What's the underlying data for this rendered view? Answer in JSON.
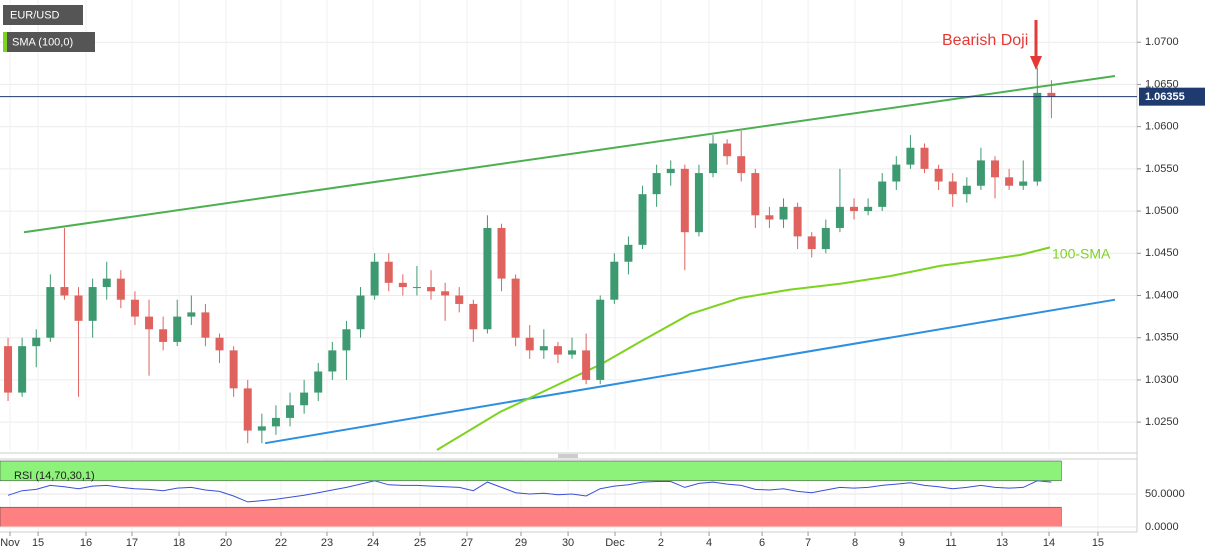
{
  "chart_data": {
    "type": "candlestick",
    "title": "EUR/USD",
    "up_color": "#3d9970",
    "down_color": "#e0625e",
    "candles": [
      [
        1.034,
        1.035,
        1.0275,
        1.0285
      ],
      [
        1.0285,
        1.035,
        1.028,
        1.034
      ],
      [
        1.034,
        1.036,
        1.0315,
        1.035
      ],
      [
        1.035,
        1.0425,
        1.0345,
        1.041
      ],
      [
        1.041,
        1.048,
        1.0395,
        1.04
      ],
      [
        1.04,
        1.041,
        1.028,
        1.037
      ],
      [
        1.037,
        1.042,
        1.035,
        1.041
      ],
      [
        1.041,
        1.044,
        1.0395,
        1.042
      ],
      [
        1.042,
        1.043,
        1.0385,
        1.0395
      ],
      [
        1.0395,
        1.0405,
        1.0365,
        1.0375
      ],
      [
        1.0375,
        1.0395,
        1.0305,
        1.036
      ],
      [
        1.036,
        1.0375,
        1.0335,
        1.0345
      ],
      [
        1.0345,
        1.0395,
        1.034,
        1.0375
      ],
      [
        1.0375,
        1.04,
        1.0365,
        1.038
      ],
      [
        1.038,
        1.039,
        1.034,
        1.035
      ],
      [
        1.035,
        1.0355,
        1.032,
        1.0335
      ],
      [
        1.0335,
        1.034,
        1.028,
        1.029
      ],
      [
        1.029,
        1.03,
        1.0225,
        1.024
      ],
      [
        1.024,
        1.026,
        1.0225,
        1.0245
      ],
      [
        1.0245,
        1.027,
        1.0235,
        1.0255
      ],
      [
        1.0255,
        1.0285,
        1.0245,
        1.027
      ],
      [
        1.027,
        1.03,
        1.026,
        1.0285
      ],
      [
        1.0285,
        1.032,
        1.0275,
        1.031
      ],
      [
        1.031,
        1.0345,
        1.03,
        1.0335
      ],
      [
        1.0335,
        1.037,
        1.03,
        1.036
      ],
      [
        1.036,
        1.041,
        1.035,
        1.04
      ],
      [
        1.04,
        1.045,
        1.0395,
        1.044
      ],
      [
        1.044,
        1.045,
        1.0405,
        1.0415
      ],
      [
        1.0415,
        1.0425,
        1.04,
        1.041
      ],
      [
        1.041,
        1.0435,
        1.04,
        1.041
      ],
      [
        1.041,
        1.043,
        1.0395,
        1.0405
      ],
      [
        1.0405,
        1.0415,
        1.037,
        1.04
      ],
      [
        1.04,
        1.041,
        1.038,
        1.039
      ],
      [
        1.039,
        1.0395,
        1.0345,
        1.036
      ],
      [
        1.036,
        1.0495,
        1.0355,
        1.048
      ],
      [
        1.048,
        1.0485,
        1.0405,
        1.042
      ],
      [
        1.042,
        1.0425,
        1.034,
        1.035
      ],
      [
        1.035,
        1.0365,
        1.0325,
        1.0335
      ],
      [
        1.0335,
        1.036,
        1.0325,
        1.034
      ],
      [
        1.034,
        1.0345,
        1.032,
        1.033
      ],
      [
        1.033,
        1.035,
        1.0325,
        1.0335
      ],
      [
        1.0335,
        1.0355,
        1.0295,
        1.03
      ],
      [
        1.03,
        1.04,
        1.0295,
        1.0395
      ],
      [
        1.0395,
        1.045,
        1.039,
        1.044
      ],
      [
        1.044,
        1.047,
        1.0425,
        1.046
      ],
      [
        1.046,
        1.053,
        1.0455,
        1.052
      ],
      [
        1.052,
        1.0555,
        1.0505,
        1.0545
      ],
      [
        1.0545,
        1.056,
        1.053,
        1.055
      ],
      [
        1.055,
        1.0555,
        1.043,
        1.0475
      ],
      [
        1.0475,
        1.0555,
        1.047,
        1.0545
      ],
      [
        1.0545,
        1.059,
        1.054,
        1.058
      ],
      [
        1.058,
        1.0585,
        1.0555,
        1.0565
      ],
      [
        1.0565,
        1.0595,
        1.0535,
        1.0545
      ],
      [
        1.0545,
        1.055,
        1.048,
        1.0495
      ],
      [
        1.0495,
        1.0505,
        1.048,
        1.049
      ],
      [
        1.049,
        1.0515,
        1.048,
        1.0505
      ],
      [
        1.0505,
        1.051,
        1.0455,
        1.047
      ],
      [
        1.047,
        1.0475,
        1.0445,
        1.0455
      ],
      [
        1.0455,
        1.049,
        1.045,
        1.048
      ],
      [
        1.048,
        1.055,
        1.0475,
        1.0505
      ],
      [
        1.0505,
        1.0515,
        1.049,
        1.05
      ],
      [
        1.05,
        1.0515,
        1.0495,
        1.0505
      ],
      [
        1.0505,
        1.0545,
        1.05,
        1.0535
      ],
      [
        1.0535,
        1.0565,
        1.0525,
        1.0555
      ],
      [
        1.0555,
        1.059,
        1.055,
        1.0575
      ],
      [
        1.0575,
        1.058,
        1.0545,
        1.055
      ],
      [
        1.055,
        1.0555,
        1.0525,
        1.0535
      ],
      [
        1.0535,
        1.0545,
        1.0505,
        1.052
      ],
      [
        1.052,
        1.054,
        1.051,
        1.053
      ],
      [
        1.053,
        1.0575,
        1.0525,
        1.056
      ],
      [
        1.056,
        1.0565,
        1.0515,
        1.054
      ],
      [
        1.054,
        1.055,
        1.0525,
        1.053
      ],
      [
        1.053,
        1.056,
        1.0525,
        1.0535
      ],
      [
        1.0535,
        1.067,
        1.053,
        1.064
      ],
      [
        1.064,
        1.0655,
        1.061,
        1.06355
      ]
    ],
    "xlim": [
      -0.57,
      80.07
    ],
    "xticks": [
      {
        "value": 0.14,
        "label": "Nov"
      },
      {
        "value": 2.13,
        "label": "15"
      },
      {
        "value": 5.53,
        "label": "16"
      },
      {
        "value": 8.79,
        "label": "17"
      },
      {
        "value": 12.13,
        "label": "18"
      },
      {
        "value": 15.46,
        "label": "20"
      },
      {
        "value": 19.36,
        "label": "22"
      },
      {
        "value": 22.62,
        "label": "23"
      },
      {
        "value": 25.89,
        "label": "24"
      },
      {
        "value": 29.22,
        "label": "25"
      },
      {
        "value": 32.55,
        "label": "27"
      },
      {
        "value": 36.38,
        "label": "29"
      },
      {
        "value": 39.72,
        "label": "30"
      },
      {
        "value": 43.05,
        "label": "Dec"
      },
      {
        "value": 46.31,
        "label": "2"
      },
      {
        "value": 49.72,
        "label": "4"
      },
      {
        "value": 53.48,
        "label": "6"
      },
      {
        "value": 56.74,
        "label": "7"
      },
      {
        "value": 60.07,
        "label": "8"
      },
      {
        "value": 63.4,
        "label": "9"
      },
      {
        "value": 66.88,
        "label": "11"
      },
      {
        "value": 70.5,
        "label": "13"
      },
      {
        "value": 73.83,
        "label": "14"
      },
      {
        "value": 77.3,
        "label": "15"
      }
    ],
    "ylim": [
      1.0217,
      1.075
    ],
    "yticks": [
      {
        "value": 1.025,
        "label": "1.0250"
      },
      {
        "value": 1.03,
        "label": "1.0300"
      },
      {
        "value": 1.035,
        "label": "1.0350"
      },
      {
        "value": 1.04,
        "label": "1.0400"
      },
      {
        "value": 1.045,
        "label": "1.0450"
      },
      {
        "value": 1.05,
        "label": "1.0500"
      },
      {
        "value": 1.055,
        "label": "1.0550"
      },
      {
        "value": 1.06,
        "label": "1.0600"
      },
      {
        "value": 1.065,
        "label": "1.0650"
      },
      {
        "value": 1.07,
        "label": "1.0700"
      }
    ],
    "grid": true,
    "price_line_color": "#1f3a6e",
    "sma": {
      "name": "SMA (100,0)",
      "label": "100-SMA",
      "color": "#7ed321",
      "x": [
        30.42,
        34.89,
        38.44,
        41.99,
        44.82,
        48.37,
        51.91,
        55.46,
        59.01,
        62.55,
        66.1,
        69.65,
        71.77,
        73.9
      ],
      "values": [
        1.0217,
        1.0262,
        1.029,
        1.0318,
        1.0345,
        1.0378,
        1.0397,
        1.0407,
        1.0414,
        1.0423,
        1.0435,
        1.0443,
        1.0448,
        1.0457
      ]
    },
    "trendlines": [
      {
        "color": "#4caf50",
        "x": [
          1.13,
          78.51
        ],
        "values": [
          1.0475,
          1.066
        ]
      },
      {
        "color": "#2d8fe0",
        "x": [
          18.23,
          78.51
        ],
        "values": [
          1.0225,
          1.0395
        ]
      }
    ],
    "annotation": "Bearish Doji",
    "rsi": {
      "name": "RSI (14,70,30,1)",
      "color": "#3b4fd8",
      "ylim": [
        0,
        100
      ],
      "overbought": 70,
      "oversold": 30,
      "yticks": [
        {
          "value": 50,
          "label": "50.0000"
        },
        {
          "value": 0,
          "label": "0.0000"
        }
      ],
      "values": [
        48,
        55,
        57,
        63,
        61,
        58,
        62,
        63,
        60,
        58,
        57,
        55,
        59,
        60,
        56,
        54,
        47,
        38,
        40,
        42,
        45,
        48,
        52,
        56,
        60,
        65,
        70,
        64,
        63,
        63,
        62,
        61,
        60,
        55,
        68,
        60,
        52,
        50,
        51,
        49,
        50,
        47,
        58,
        62,
        64,
        68,
        69,
        69,
        60,
        66,
        68,
        65,
        63,
        57,
        56,
        58,
        54,
        52,
        56,
        60,
        59,
        60,
        63,
        65,
        67,
        63,
        61,
        58,
        60,
        63,
        60,
        59,
        60,
        70,
        68
      ]
    }
  }
}
